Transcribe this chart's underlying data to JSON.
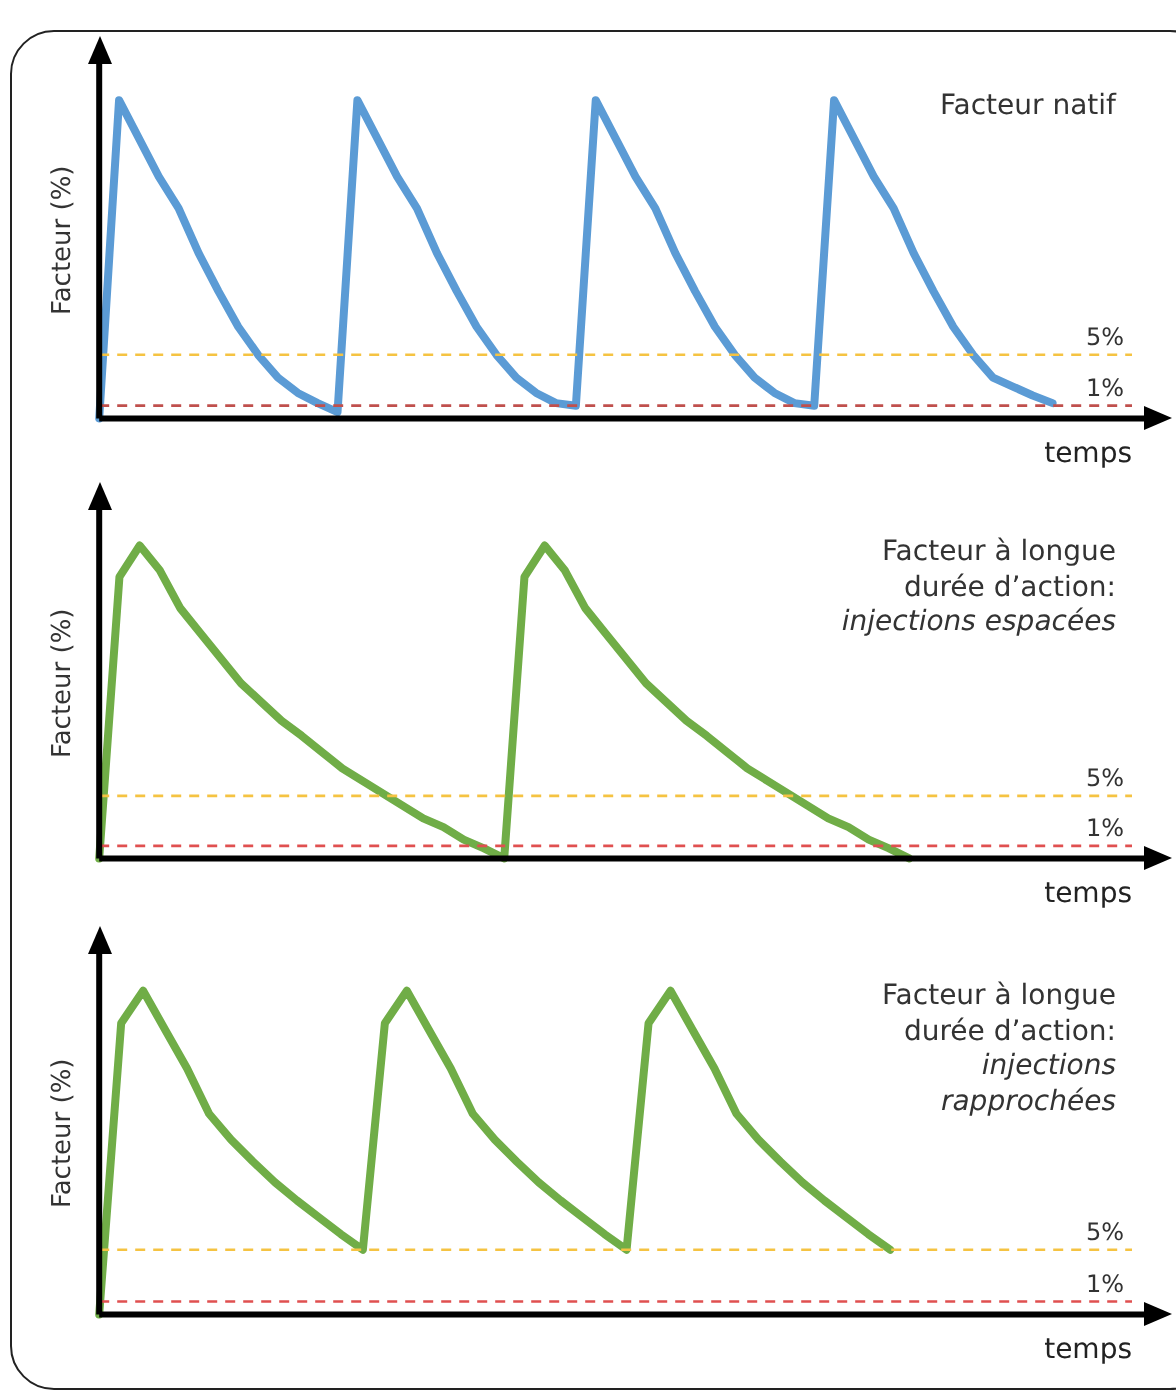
{
  "chart_data": [
    {
      "type": "line",
      "ylim": [
        0,
        28
      ],
      "xlabel": "temps",
      "ylabel": "Facteur (%)",
      "annotations": [
        "Facteur natif"
      ],
      "categories": [
        null,
        null,
        null,
        null,
        null,
        null,
        null,
        null,
        null,
        null,
        null,
        null,
        null,
        null,
        null,
        null,
        null,
        null,
        null,
        null,
        null,
        null,
        null,
        null,
        null,
        null,
        null,
        null,
        null,
        null,
        null,
        null,
        null,
        null,
        null,
        null,
        null,
        null,
        null,
        null,
        null,
        null,
        null,
        null,
        null,
        null,
        null,
        null,
        null,
        null,
        null,
        null,
        null
      ],
      "series": [
        {
          "color": "#5b9bd5",
          "values": [
            0,
            25,
            22,
            19,
            16.5,
            13,
            10,
            7.2,
            5,
            3.2,
            2,
            1.2,
            0.5,
            25,
            22,
            19,
            16.5,
            13,
            10,
            7.2,
            5,
            3.2,
            2,
            1.2,
            1,
            25,
            22,
            19,
            16.5,
            13,
            10,
            7.2,
            5,
            3.2,
            2,
            1.2,
            1,
            25,
            22,
            19,
            16.5,
            13,
            10,
            7.2,
            5,
            3.2,
            2.5,
            1.8,
            1.2,
            null,
            null,
            null,
            null
          ]
        }
      ],
      "ref_lines": [
        {
          "axis": "y",
          "value": 5,
          "label": "5%",
          "color": "#f5c342",
          "line_style": "dashed"
        },
        {
          "axis": "y",
          "value": 1,
          "label": "1%",
          "color": "#c0504d",
          "line_style": "dashed"
        }
      ]
    },
    {
      "type": "line",
      "ylim": [
        0,
        28
      ],
      "xlabel": "temps",
      "ylabel": "Facteur (%)",
      "annotations": [
        "Facteur à longue durée d’action:",
        "injections espacées"
      ],
      "categories": [
        null,
        null,
        null,
        null,
        null,
        null,
        null,
        null,
        null,
        null,
        null,
        null,
        null,
        null,
        null,
        null,
        null,
        null,
        null,
        null,
        null,
        null,
        null,
        null,
        null,
        null,
        null,
        null,
        null,
        null,
        null,
        null,
        null,
        null,
        null,
        null,
        null,
        null,
        null,
        null,
        null,
        null,
        null,
        null,
        null,
        null,
        null,
        null,
        null,
        null,
        null,
        null
      ],
      "series": [
        {
          "color": "#70ad47",
          "values": [
            0,
            22.5,
            25,
            23,
            20,
            18,
            16,
            14,
            12.5,
            11,
            9.8,
            8.5,
            7.2,
            6.2,
            5.2,
            4.2,
            3.2,
            2.5,
            1.5,
            0.8,
            0,
            22.5,
            25,
            23,
            20,
            18,
            16,
            14,
            12.5,
            11,
            9.8,
            8.5,
            7.2,
            6.2,
            5.2,
            4.2,
            3.2,
            2.5,
            1.5,
            0.8,
            0,
            null,
            null,
            null,
            null,
            null,
            null,
            null,
            null,
            null,
            null,
            null
          ]
        }
      ],
      "ref_lines": [
        {
          "axis": "y",
          "value": 5,
          "label": "5%",
          "color": "#f5c342",
          "line_style": "dashed"
        },
        {
          "axis": "y",
          "value": 1,
          "label": "1%",
          "color": "#e05050",
          "line_style": "dashed"
        }
      ]
    },
    {
      "type": "line",
      "ylim": [
        0,
        28
      ],
      "xlabel": "temps",
      "ylabel": "Facteur (%)",
      "annotations": [
        "Facteur à longue durée d’action:",
        "injections rapprochées"
      ],
      "categories": [
        null,
        null,
        null,
        null,
        null,
        null,
        null,
        null,
        null,
        null,
        null,
        null,
        null,
        null,
        null,
        null,
        null,
        null,
        null,
        null,
        null,
        null,
        null,
        null,
        null,
        null,
        null,
        null,
        null,
        null,
        null,
        null,
        null,
        null,
        null,
        null,
        null,
        null,
        null,
        null,
        null,
        null,
        null,
        null,
        null,
        null,
        null,
        null
      ],
      "series": [
        {
          "color": "#70ad47",
          "values": [
            0,
            22.5,
            25,
            22,
            19,
            15.5,
            13.5,
            11.8,
            10.2,
            8.8,
            7.5,
            6.2,
            5,
            22.5,
            25,
            22,
            19,
            15.5,
            13.5,
            11.8,
            10.2,
            8.8,
            7.5,
            6.2,
            5,
            22.5,
            25,
            22,
            19,
            15.5,
            13.5,
            11.8,
            10.2,
            8.8,
            7.5,
            6.2,
            5,
            null,
            null,
            null,
            null,
            null,
            null,
            null,
            null,
            null,
            null,
            null
          ]
        }
      ],
      "ref_lines": [
        {
          "axis": "y",
          "value": 5,
          "label": "5%",
          "color": "#f5c342",
          "line_style": "dashed"
        },
        {
          "axis": "y",
          "value": 1,
          "label": "1%",
          "color": "#e05050",
          "line_style": "dashed"
        }
      ]
    }
  ]
}
